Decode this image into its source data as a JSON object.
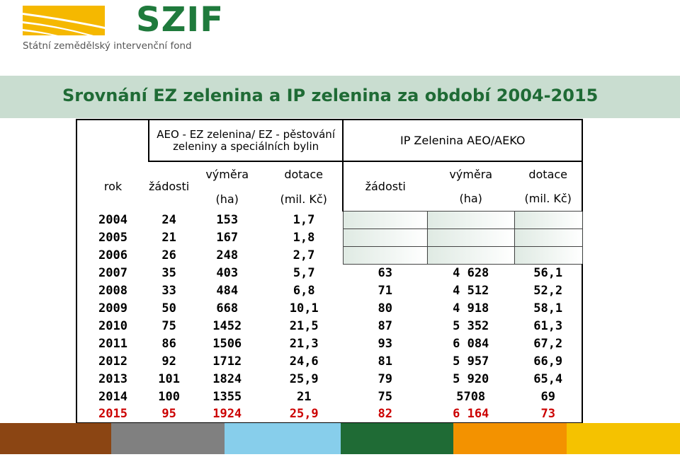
{
  "logo": {
    "name": "SZIF",
    "subtitle": "Státní zemědělský intervenční fond",
    "mark_color": "#f5b800",
    "text_color": "#1f7a3c"
  },
  "title": "Srovnání EZ zelenina a IP zelenina za období 2004-2015",
  "table": {
    "group_ez": "AEO - EZ zelenina/\nEZ - pěstování zeleniny a speciálních bylin",
    "group_ip": "IP Zelenina AEO/AEKO",
    "col_rok": "rok",
    "col_zadosti": "žádosti",
    "col_vymera": "výměra",
    "col_dotace": "dotace",
    "unit_ha": "(ha)",
    "unit_mil": "(mil. Kč)",
    "rows": [
      {
        "rok": "2004",
        "ez_zadosti": "24",
        "ez_vymera": "153",
        "ez_dotace": "1,7",
        "ip_zadosti": "",
        "ip_vymera": "",
        "ip_dotace": ""
      },
      {
        "rok": "2005",
        "ez_zadosti": "21",
        "ez_vymera": "167",
        "ez_dotace": "1,8",
        "ip_zadosti": "",
        "ip_vymera": "",
        "ip_dotace": ""
      },
      {
        "rok": "2006",
        "ez_zadosti": "26",
        "ez_vymera": "248",
        "ez_dotace": "2,7",
        "ip_zadosti": "",
        "ip_vymera": "",
        "ip_dotace": ""
      },
      {
        "rok": "2007",
        "ez_zadosti": "35",
        "ez_vymera": "403",
        "ez_dotace": "5,7",
        "ip_zadosti": "63",
        "ip_vymera": "4 628",
        "ip_dotace": "56,1"
      },
      {
        "rok": "2008",
        "ez_zadosti": "33",
        "ez_vymera": "484",
        "ez_dotace": "6,8",
        "ip_zadosti": "71",
        "ip_vymera": "4 512",
        "ip_dotace": "52,2"
      },
      {
        "rok": "2009",
        "ez_zadosti": "50",
        "ez_vymera": "668",
        "ez_dotace": "10,1",
        "ip_zadosti": "80",
        "ip_vymera": "4 918",
        "ip_dotace": "58,1"
      },
      {
        "rok": "2010",
        "ez_zadosti": "75",
        "ez_vymera": "1452",
        "ez_dotace": "21,5",
        "ip_zadosti": "87",
        "ip_vymera": "5 352",
        "ip_dotace": "61,3"
      },
      {
        "rok": "2011",
        "ez_zadosti": "86",
        "ez_vymera": "1506",
        "ez_dotace": "21,3",
        "ip_zadosti": "93",
        "ip_vymera": "6 084",
        "ip_dotace": "67,2"
      },
      {
        "rok": "2012",
        "ez_zadosti": "92",
        "ez_vymera": "1712",
        "ez_dotace": "24,6",
        "ip_zadosti": "81",
        "ip_vymera": "5 957",
        "ip_dotace": "66,9"
      },
      {
        "rok": "2013",
        "ez_zadosti": "101",
        "ez_vymera": "1824",
        "ez_dotace": "25,9",
        "ip_zadosti": "79",
        "ip_vymera": "5 920",
        "ip_dotace": "65,4"
      },
      {
        "rok": "2014",
        "ez_zadosti": "100",
        "ez_vymera": "1355",
        "ez_dotace": "21",
        "ip_zadosti": "75",
        "ip_vymera": "5708",
        "ip_dotace": "69"
      },
      {
        "rok": "2015",
        "ez_zadosti": "95",
        "ez_vymera": "1924",
        "ez_dotace": "25,9",
        "ip_zadosti": "82",
        "ip_vymera": "6 164",
        "ip_dotace": "73"
      }
    ],
    "highlight_color": "#cc0000"
  },
  "colors": {
    "title": "#1f6b35",
    "title_band": "#c9ddd0",
    "bottom_bar": [
      "#8b4513",
      "#808080",
      "#87ceeb",
      "#1f6b35",
      "#f39200",
      "#f5c200"
    ]
  }
}
